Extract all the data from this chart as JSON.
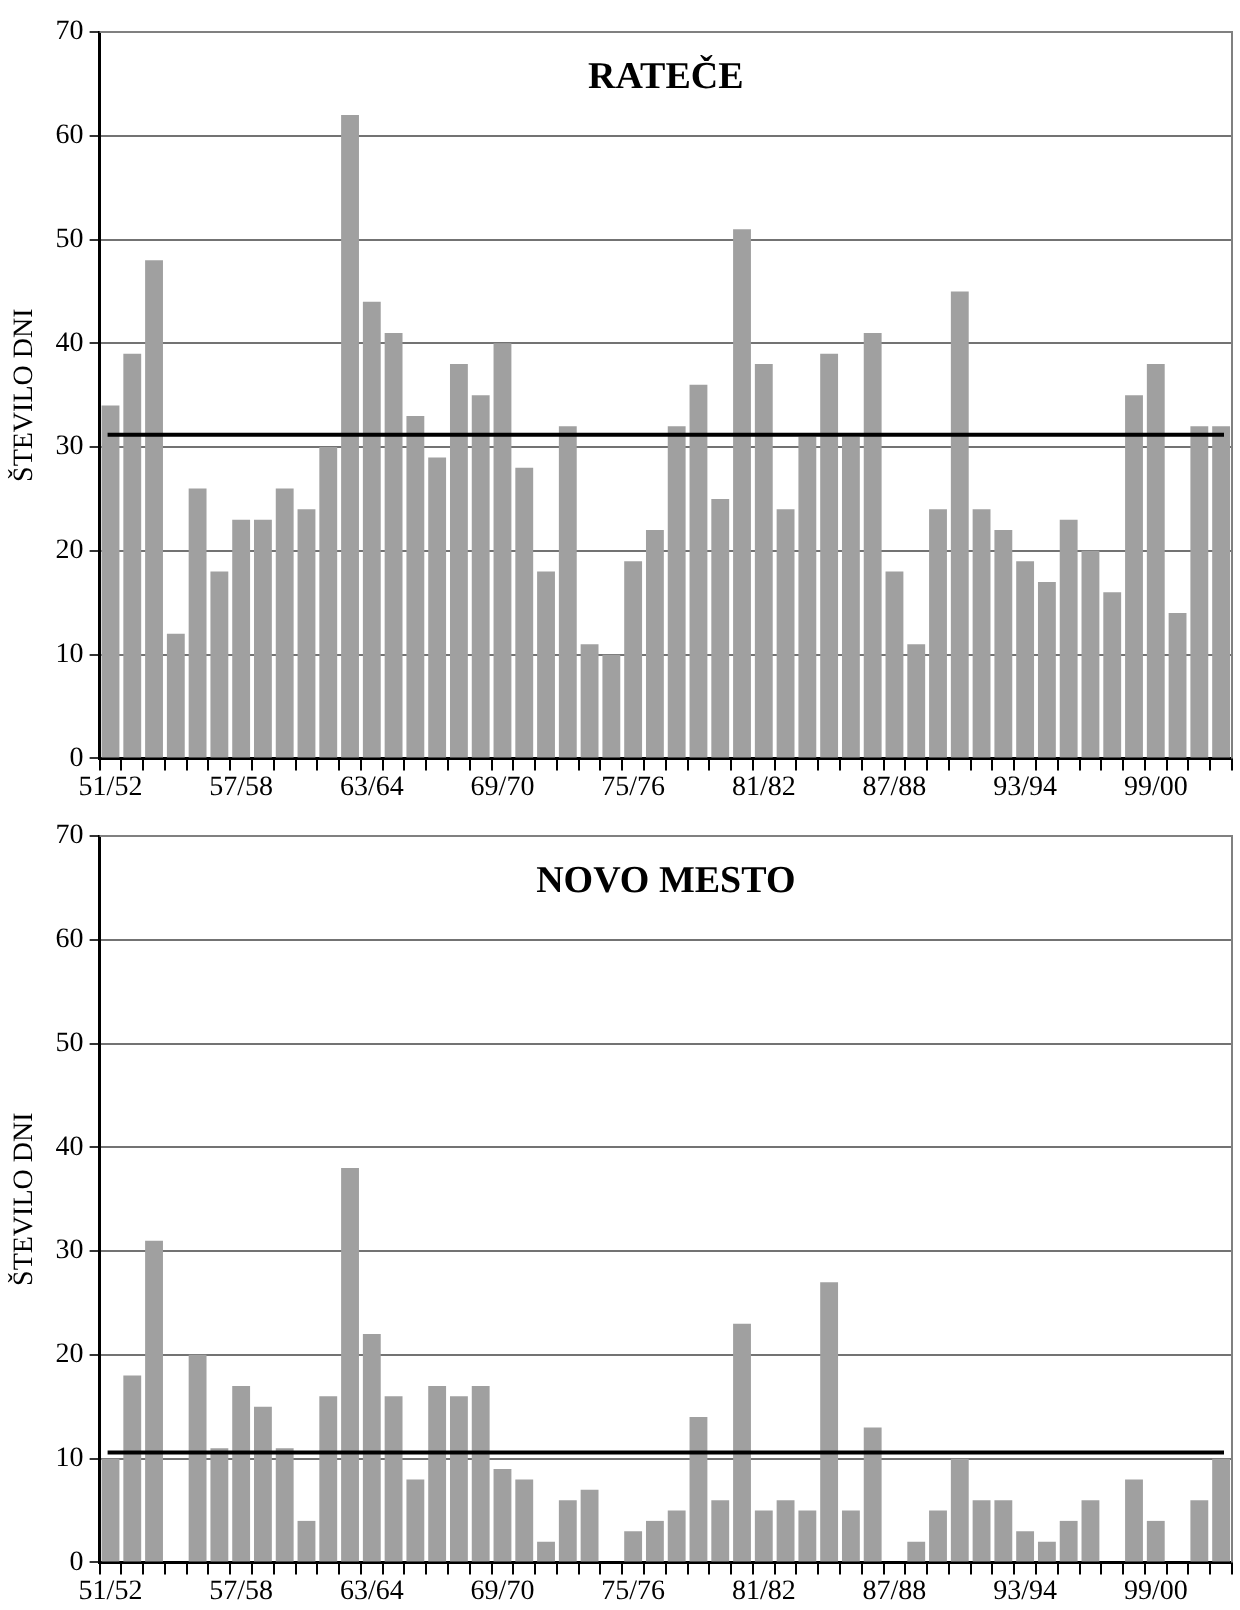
{
  "chart_data": [
    {
      "type": "bar",
      "title": "RATEČE",
      "ylabel": "ŠTEVILO DNI",
      "categories": [
        "51/52",
        null,
        null,
        null,
        null,
        null,
        "57/58",
        null,
        null,
        null,
        null,
        null,
        "63/64",
        null,
        null,
        null,
        null,
        null,
        "69/70",
        null,
        null,
        null,
        null,
        null,
        "75/76",
        null,
        null,
        null,
        null,
        null,
        "81/82",
        null,
        null,
        null,
        null,
        null,
        "87/88",
        null,
        null,
        null,
        null,
        null,
        "93/94",
        null,
        null,
        null,
        null,
        null,
        "99/00",
        null,
        null,
        null
      ],
      "values": [
        34,
        39,
        48,
        12,
        26,
        18,
        23,
        23,
        26,
        24,
        30,
        62,
        44,
        41,
        33,
        29,
        38,
        35,
        40,
        28,
        18,
        32,
        11,
        10,
        19,
        22,
        32,
        36,
        25,
        51,
        38,
        24,
        31,
        39,
        31,
        41,
        18,
        11,
        24,
        45,
        24,
        22,
        19,
        17,
        23,
        20,
        16,
        35,
        38,
        14,
        32,
        32
      ],
      "color": "#a0a0a0",
      "ylim": [
        0,
        70
      ],
      "yticks": [
        0,
        10,
        20,
        30,
        40,
        50,
        60,
        70
      ],
      "grid": "y",
      "ref_lines": [
        {
          "axis": "y",
          "value": 31.2,
          "color": "#000000"
        }
      ]
    },
    {
      "type": "bar",
      "title": "NOVO MESTO",
      "ylabel": "ŠTEVILO DNI",
      "categories": [
        "51/52",
        null,
        null,
        null,
        null,
        null,
        "57/58",
        null,
        null,
        null,
        null,
        null,
        "63/64",
        null,
        null,
        null,
        null,
        null,
        "69/70",
        null,
        null,
        null,
        null,
        null,
        "75/76",
        null,
        null,
        null,
        null,
        null,
        "81/82",
        null,
        null,
        null,
        null,
        null,
        "87/88",
        null,
        null,
        null,
        null,
        null,
        "93/94",
        null,
        null,
        null,
        null,
        null,
        "99/00",
        null,
        null,
        null
      ],
      "values": [
        10,
        18,
        31,
        0,
        20,
        11,
        17,
        15,
        11,
        4,
        16,
        38,
        22,
        16,
        8,
        17,
        16,
        17,
        9,
        8,
        2,
        6,
        7,
        0,
        3,
        4,
        5,
        14,
        6,
        23,
        5,
        6,
        5,
        27,
        5,
        13,
        0,
        2,
        5,
        10,
        6,
        6,
        3,
        2,
        4,
        6,
        0,
        8,
        4,
        0,
        6,
        10
      ],
      "color": "#a0a0a0",
      "ylim": [
        0,
        70
      ],
      "yticks": [
        0,
        10,
        20,
        30,
        40,
        50,
        60,
        70
      ],
      "grid": "y",
      "ref_lines": [
        {
          "axis": "y",
          "value": 10.6,
          "color": "#000000"
        }
      ]
    }
  ]
}
